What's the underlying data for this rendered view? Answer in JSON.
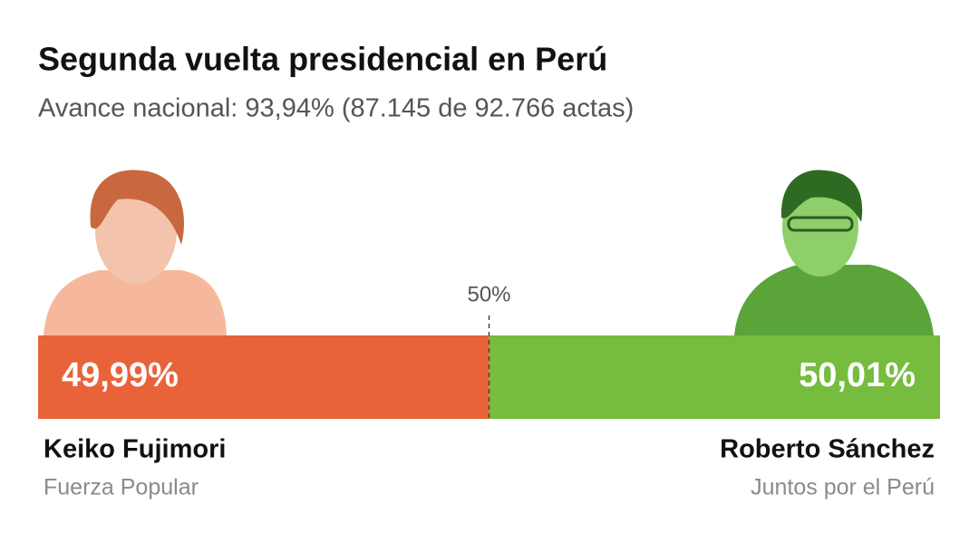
{
  "chart_data": {
    "type": "bar",
    "title": "Segunda vuelta presidencial en Perú",
    "subtitle": "Avance nacional: 93,94% (87.145 de 92.766 actas)",
    "xlim": [
      0,
      100
    ],
    "xticks": [
      {
        "value": 50,
        "label": "50%"
      }
    ],
    "series": [
      {
        "name": "Keiko Fujimori",
        "party": "Fuerza Popular",
        "color": "#e8633a",
        "values": [
          49.99
        ],
        "value_labels": [
          "49,99%"
        ]
      },
      {
        "name": "Roberto Sánchez",
        "party": "Juntos por el Perú",
        "color": "#76bc3e",
        "values": [
          50.01
        ],
        "value_labels": [
          "50,01%"
        ]
      }
    ]
  }
}
